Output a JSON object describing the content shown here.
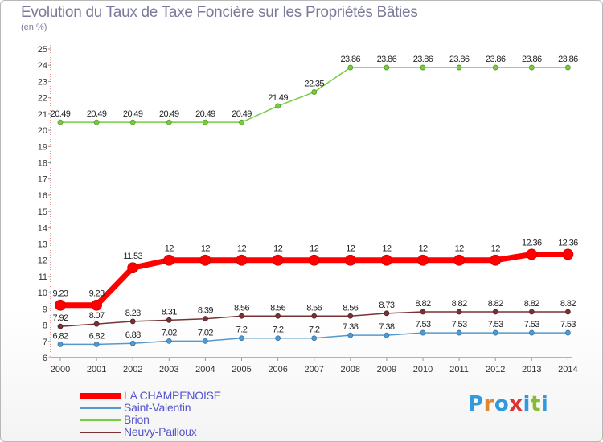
{
  "chart_data": {
    "type": "line",
    "title": "Evolution du Taux de Taxe Foncière sur les Propriétés Bâties",
    "subtitle": "(en %)",
    "xlabel": "",
    "ylabel": "",
    "ylim": [
      6,
      25
    ],
    "yticks": [
      "6",
      "7",
      "8",
      "9",
      "10",
      "11",
      "12",
      "13",
      "14",
      "15",
      "16",
      "17",
      "18",
      "19",
      "20",
      "21",
      "22",
      "23",
      "24",
      "25"
    ],
    "categories": [
      "2000",
      "2001",
      "2002",
      "2003",
      "2004",
      "2005",
      "2006",
      "2007",
      "2008",
      "2009",
      "2010",
      "2011",
      "2012",
      "2013",
      "2014"
    ],
    "grid": false,
    "legend_position": "bottom-left",
    "series": [
      {
        "name": "LA CHAMPENOISE",
        "color": "#ff0000",
        "values": [
          9.23,
          9.23,
          11.53,
          12,
          12,
          12,
          12,
          12,
          12,
          12,
          12,
          12,
          12,
          12.36,
          12.36
        ],
        "labels": [
          "9.23",
          "9.23",
          "11.53",
          "12",
          "12",
          "12",
          "12",
          "12",
          "12",
          "12",
          "12",
          "12",
          "12",
          "12.36",
          "12.36"
        ]
      },
      {
        "name": "Saint-Valentin",
        "color": "#5599cc",
        "values": [
          6.82,
          6.82,
          6.88,
          7.02,
          7.02,
          7.2,
          7.2,
          7.2,
          7.38,
          7.38,
          7.53,
          7.53,
          7.53,
          7.53,
          7.53
        ],
        "labels": [
          "6.82",
          "6.82",
          "6.88",
          "7.02",
          "7.02",
          "7.2",
          "7.2",
          "7.2",
          "7.38",
          "7.38",
          "7.53",
          "7.53",
          "7.53",
          "7.53",
          "7.53"
        ]
      },
      {
        "name": "Brion",
        "color": "#77cc44",
        "values": [
          20.49,
          20.49,
          20.49,
          20.49,
          20.49,
          20.49,
          21.49,
          22.35,
          23.86,
          23.86,
          23.86,
          23.86,
          23.86,
          23.86,
          23.86
        ],
        "labels": [
          "20.49",
          "20.49",
          "20.49",
          "20.49",
          "20.49",
          "20.49",
          "21.49",
          "22.35",
          "23.86",
          "23.86",
          "23.86",
          "23.86",
          "23.86",
          "23.86",
          "23.86"
        ]
      },
      {
        "name": "Neuvy-Pailloux",
        "color": "#773333",
        "values": [
          7.92,
          8.07,
          8.23,
          8.31,
          8.39,
          8.56,
          8.56,
          8.56,
          8.56,
          8.73,
          8.82,
          8.82,
          8.82,
          8.82,
          8.82
        ],
        "labels": [
          "7.92",
          "8.07",
          "8.23",
          "8.31",
          "8.39",
          "8.56",
          "8.56",
          "8.56",
          "8.56",
          "8.73",
          "8.82",
          "8.82",
          "8.82",
          "8.82",
          "8.82"
        ]
      }
    ]
  },
  "logo": {
    "text": "Proxiti",
    "letters": [
      "P",
      "r",
      "o",
      "x",
      "i",
      "t",
      "i"
    ],
    "colors": [
      "#3399dd",
      "#dd8833",
      "#3399dd",
      "#dd3333",
      "#3399dd",
      "#88bb33",
      "#3399dd"
    ]
  }
}
